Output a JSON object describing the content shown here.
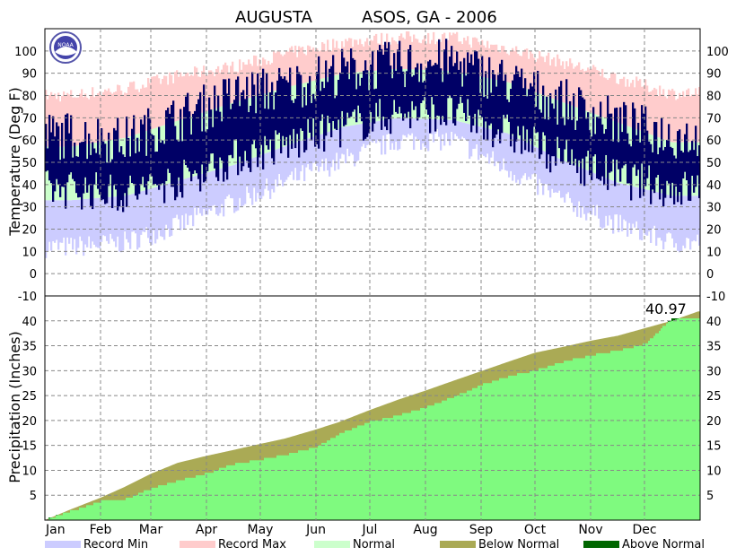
{
  "title": {
    "station": "AUGUSTA",
    "network": "ASOS, GA - 2006"
  },
  "colors": {
    "record_min": "#ccccff",
    "record_max": "#ffcccc",
    "normal": "#ccffcc",
    "observed": "#000066",
    "below_normal": "#aaaa55",
    "above_normal": "#006600",
    "precip_observed": "#7ffa7f"
  },
  "logo": {
    "name": "noaa-logo",
    "text": "NOAA"
  },
  "chart_data": [
    {
      "type": "bar",
      "panel": "temperature",
      "ylabel": "Temperature (Deg F)",
      "ylim": [
        -10,
        110
      ],
      "yticks": [
        -10,
        0,
        10,
        20,
        30,
        40,
        50,
        60,
        70,
        80,
        90,
        100
      ],
      "grid": true,
      "categories": [
        "Jan",
        "Feb",
        "Mar",
        "Apr",
        "May",
        "Jun",
        "Jul",
        "Aug",
        "Sep",
        "Oct",
        "Nov",
        "Dec"
      ],
      "month_start_day": [
        1,
        32,
        60,
        91,
        121,
        152,
        182,
        213,
        244,
        274,
        305,
        335
      ],
      "series": [
        {
          "name": "Record Min",
          "values_monthly_mid": [
            12,
            14,
            22,
            32,
            42,
            51,
            60,
            60,
            47,
            33,
            22,
            14
          ]
        },
        {
          "name": "Record Max",
          "values_monthly_mid": [
            80,
            83,
            89,
            93,
            99,
            104,
            106,
            106,
            101,
            95,
            88,
            81
          ]
        },
        {
          "name": "Normal",
          "high_monthly": [
            57,
            61,
            69,
            77,
            84,
            90,
            92,
            91,
            86,
            77,
            68,
            59
          ],
          "low_monthly": [
            33,
            35,
            42,
            49,
            58,
            66,
            70,
            69,
            63,
            51,
            41,
            35
          ]
        },
        {
          "name": "Observed",
          "high_monthly": [
            62,
            60,
            70,
            80,
            84,
            91,
            94,
            95,
            86,
            77,
            68,
            62
          ],
          "low_monthly": [
            38,
            36,
            42,
            52,
            58,
            66,
            72,
            72,
            63,
            52,
            43,
            38
          ]
        }
      ]
    },
    {
      "type": "area",
      "panel": "precipitation",
      "ylabel": "Precipitation (Inches)",
      "ylim": [
        0,
        45
      ],
      "yticks": [
        5,
        10,
        15,
        20,
        25,
        30,
        35,
        40
      ],
      "grid": true,
      "annotation": "40.97",
      "x_days": [
        1,
        15,
        32,
        45,
        60,
        75,
        91,
        105,
        121,
        135,
        152,
        165,
        182,
        198,
        213,
        228,
        244,
        260,
        274,
        290,
        305,
        320,
        335,
        350,
        365
      ],
      "normal_cumulative": [
        0.0,
        2.1,
        4.5,
        6.6,
        9.3,
        11.5,
        12.9,
        14.0,
        15.3,
        16.4,
        18.2,
        19.7,
        22.1,
        24.2,
        26.0,
        27.9,
        29.9,
        31.9,
        33.6,
        34.8,
        36.0,
        37.0,
        38.5,
        40.0,
        41.9
      ],
      "observed_cumulative": [
        0.3,
        2.0,
        4.0,
        4.4,
        6.6,
        8.2,
        9.6,
        11.4,
        12.4,
        13.4,
        14.9,
        17.6,
        20.0,
        21.3,
        22.9,
        24.9,
        27.4,
        29.2,
        30.3,
        32.1,
        33.3,
        34.3,
        35.6,
        40.7,
        40.97
      ],
      "series": [
        {
          "name": "Below Normal"
        },
        {
          "name": "Above Normal"
        }
      ]
    }
  ],
  "legend": [
    {
      "label": "Record Min",
      "color": "#ccccff"
    },
    {
      "label": "Record Max",
      "color": "#ffcccc"
    },
    {
      "label": "Normal",
      "color": "#ccffcc"
    },
    {
      "label": "Below Normal",
      "color": "#aaaa55"
    },
    {
      "label": "Above Normal",
      "color": "#006600"
    }
  ]
}
